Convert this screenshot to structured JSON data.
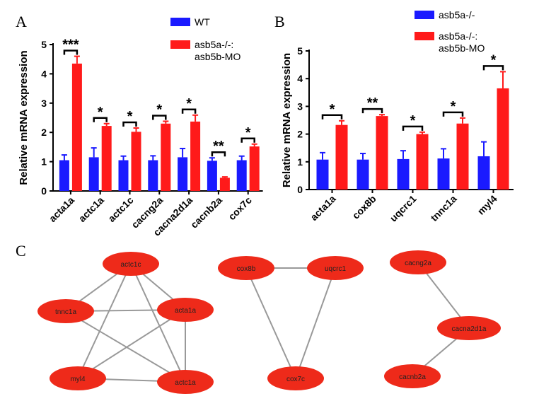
{
  "panel_labels": {
    "a": "A",
    "b": "B",
    "c": "C"
  },
  "colors": {
    "blue": "#1a1aff",
    "red": "#ff1a1a",
    "node": "#ee2a1a",
    "edge": "#999999"
  },
  "chart_data": [
    {
      "type": "bar",
      "panel": "A",
      "ylabel": "Relative mRNA expression",
      "ylim": [
        0,
        5
      ],
      "yticks": [
        0,
        1,
        2,
        3,
        4,
        5
      ],
      "categories": [
        "acta1a",
        "actc1a",
        "actc1c",
        "cacng2a",
        "cacna2d1a",
        "cacnb2a",
        "cox7c"
      ],
      "series": [
        {
          "name": "WT",
          "color": "#1a1aff",
          "values": [
            1.05,
            1.15,
            1.05,
            1.05,
            1.15,
            1.03,
            1.05
          ],
          "errors": [
            0.18,
            0.32,
            0.14,
            0.15,
            0.3,
            0.1,
            0.14
          ]
        },
        {
          "name": "asb5a-/-:\nasb5b-MO",
          "color": "#ff1a1a",
          "values": [
            4.35,
            2.22,
            2.02,
            2.3,
            2.37,
            0.45,
            1.52
          ],
          "errors": [
            0.25,
            0.08,
            0.13,
            0.08,
            0.22,
            0.03,
            0.08
          ]
        }
      ],
      "legend": [
        {
          "label": "WT"
        },
        {
          "label": "asb5a-/-:",
          "label2": "asb5b-MO"
        }
      ],
      "significance": [
        "***",
        "*",
        "*",
        "*",
        "*",
        "**",
        "*"
      ]
    },
    {
      "type": "bar",
      "panel": "B",
      "ylabel": "Relative mRNA expression",
      "ylim": [
        0,
        5
      ],
      "yticks": [
        0,
        1,
        2,
        3,
        4,
        5
      ],
      "categories": [
        "acta1a",
        "cox8b",
        "uqcrc1",
        "tnnc1a",
        "myl4"
      ],
      "series": [
        {
          "name": "asb5a-/-",
          "color": "#1a1aff",
          "values": [
            1.08,
            1.08,
            1.1,
            1.12,
            1.2
          ],
          "errors": [
            0.25,
            0.22,
            0.3,
            0.35,
            0.52
          ]
        },
        {
          "name": "asb5a-/-:\nasb5b-MO",
          "color": "#ff1a1a",
          "values": [
            2.33,
            2.65,
            2.0,
            2.38,
            3.65
          ],
          "errors": [
            0.15,
            0.05,
            0.07,
            0.2,
            0.6
          ]
        }
      ],
      "legend": [
        {
          "label": "asb5a-/-"
        },
        {
          "label": "asb5a-/-:",
          "label2": "asb5b-MO"
        }
      ],
      "significance": [
        "*",
        "**",
        "*",
        "*",
        "*"
      ]
    }
  ],
  "network": {
    "nodes": [
      "actc1c",
      "tnnc1a",
      "acta1a",
      "myl4",
      "actc1a",
      "cox8b",
      "uqcrc1",
      "cox7c",
      "cacng2a",
      "cacna2d1a",
      "cacnb2a"
    ],
    "edges": [
      [
        "actc1c",
        "tnnc1a"
      ],
      [
        "actc1c",
        "acta1a"
      ],
      [
        "actc1c",
        "myl4"
      ],
      [
        "actc1c",
        "actc1a"
      ],
      [
        "tnnc1a",
        "acta1a"
      ],
      [
        "tnnc1a",
        "actc1a"
      ],
      [
        "acta1a",
        "myl4"
      ],
      [
        "acta1a",
        "actc1a"
      ],
      [
        "myl4",
        "actc1a"
      ],
      [
        "cox8b",
        "uqcrc1"
      ],
      [
        "cox8b",
        "cox7c"
      ],
      [
        "uqcrc1",
        "cox7c"
      ],
      [
        "cacng2a",
        "cacna2d1a"
      ],
      [
        "cacna2d1a",
        "cacnb2a"
      ]
    ]
  }
}
